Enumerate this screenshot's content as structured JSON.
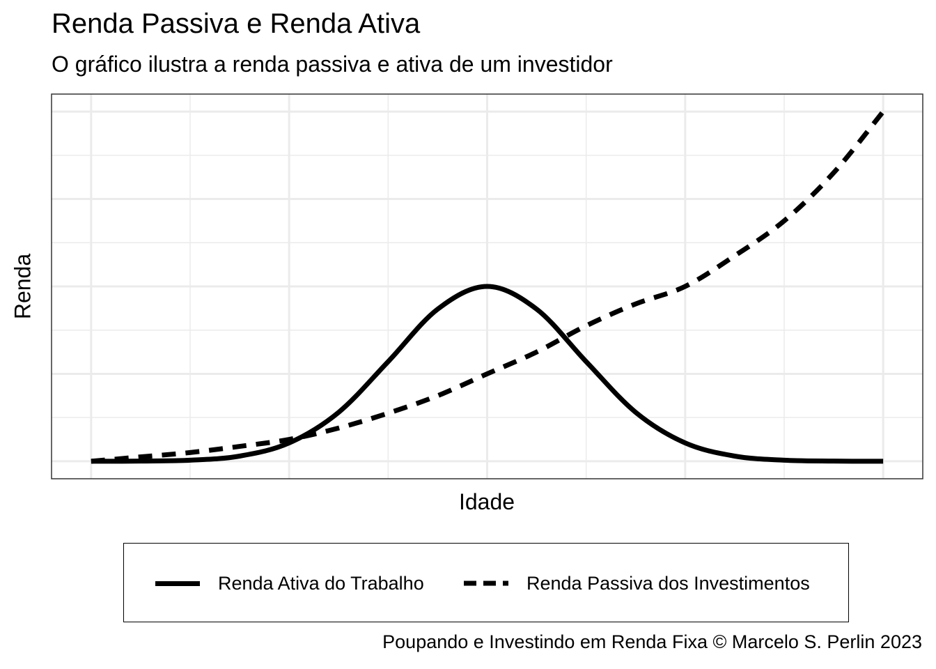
{
  "chart_data": {
    "type": "line",
    "title": "Renda Passiva e Renda Ativa",
    "subtitle": "O gráfico ilustra a renda passiva e ativa de um investidor",
    "xlabel": "Idade",
    "ylabel": "Renda",
    "x_tick_labels_shown": false,
    "y_tick_labels_shown": false,
    "grid": true,
    "legend_placement": "bottom",
    "x": [
      0,
      0.25,
      0.5,
      0.75,
      1,
      1.25,
      1.5,
      1.75,
      2,
      2.25,
      2.5,
      2.75,
      3,
      3.25,
      3.5,
      3.75,
      4
    ],
    "xlim": [
      -0.2,
      4.2
    ],
    "ylim": [
      -0.2,
      4.2
    ],
    "series": [
      {
        "name": "Renda Ativa do Trabalho",
        "style": "solid",
        "color": "#000000",
        "values": [
          0,
          0.002,
          0.012,
          0.059,
          0.21,
          0.56,
          1.14,
          1.74,
          2,
          1.74,
          1.14,
          0.56,
          0.21,
          0.059,
          0.012,
          0.002,
          0
        ]
      },
      {
        "name": "Renda Passiva dos Investimentos",
        "style": "dashed",
        "color": "#000000",
        "values": [
          0,
          0.05,
          0.1,
          0.17,
          0.25,
          0.38,
          0.55,
          0.75,
          1,
          1.25,
          1.55,
          1.8,
          2,
          2.35,
          2.75,
          3.3,
          4
        ]
      }
    ],
    "caption": "Poupando e Investindo em Renda Fixa © Marcelo S. Perlin 2023"
  }
}
